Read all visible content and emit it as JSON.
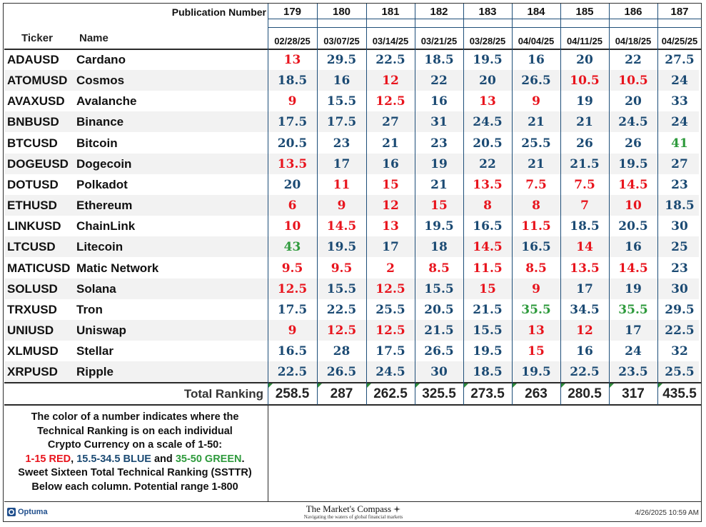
{
  "header": {
    "publication_label": "Publication Number",
    "publication_numbers": [
      "179",
      "180",
      "181",
      "182",
      "183",
      "184",
      "185",
      "186",
      "187"
    ],
    "ticker_label": "Ticker",
    "name_label": "Name",
    "dates": [
      "02/28/25",
      "03/07/25",
      "03/14/25",
      "03/21/25",
      "03/28/25",
      "04/04/25",
      "04/11/25",
      "04/18/25",
      "04/25/25"
    ]
  },
  "colors": {
    "red": "#e8141d",
    "blue": "#1b4a73",
    "green": "#2e9a3c",
    "divider": "#1e4e79",
    "stripe": "#f2f2f2"
  },
  "rows": [
    {
      "ticker": "ADAUSD",
      "name": "Cardano",
      "values": [
        "13",
        "29.5",
        "22.5",
        "18.5",
        "19.5",
        "16",
        "20",
        "22",
        "27.5"
      ]
    },
    {
      "ticker": "ATOMUSD",
      "name": "Cosmos",
      "values": [
        "18.5",
        "16",
        "12",
        "22",
        "20",
        "26.5",
        "10.5",
        "10.5",
        "24"
      ]
    },
    {
      "ticker": "AVAXUSD",
      "name": "Avalanche",
      "values": [
        "9",
        "15.5",
        "12.5",
        "16",
        "13",
        "9",
        "19",
        "20",
        "33"
      ]
    },
    {
      "ticker": "BNBUSD",
      "name": "Binance",
      "values": [
        "17.5",
        "17.5",
        "27",
        "31",
        "24.5",
        "21",
        "21",
        "24.5",
        "24"
      ]
    },
    {
      "ticker": "BTCUSD",
      "name": "Bitcoin",
      "values": [
        "20.5",
        "23",
        "21",
        "23",
        "20.5",
        "25.5",
        "26",
        "26",
        "41"
      ]
    },
    {
      "ticker": "DOGEUSD",
      "name": "Dogecoin",
      "values": [
        "13.5",
        "17",
        "16",
        "19",
        "22",
        "21",
        "21.5",
        "19.5",
        "27"
      ]
    },
    {
      "ticker": "DOTUSD",
      "name": "Polkadot",
      "values": [
        "20",
        "11",
        "15",
        "21",
        "13.5",
        "7.5",
        "7.5",
        "14.5",
        "23"
      ]
    },
    {
      "ticker": "ETHUSD",
      "name": "Ethereum",
      "values": [
        "6",
        "9",
        "12",
        "15",
        "8",
        "8",
        "7",
        "10",
        "18.5"
      ]
    },
    {
      "ticker": "LINKUSD",
      "name": "ChainLink",
      "values": [
        "10",
        "14.5",
        "13",
        "19.5",
        "16.5",
        "11.5",
        "18.5",
        "20.5",
        "30"
      ]
    },
    {
      "ticker": "LTCUSD",
      "name": "Litecoin",
      "values": [
        "43",
        "19.5",
        "17",
        "18",
        "14.5",
        "16.5",
        "14",
        "16",
        "25"
      ]
    },
    {
      "ticker": "MATICUSD",
      "name": "Matic Network",
      "values": [
        "9.5",
        "9.5",
        "2",
        "8.5",
        "11.5",
        "8.5",
        "13.5",
        "14.5",
        "23"
      ]
    },
    {
      "ticker": "SOLUSD",
      "name": "Solana",
      "values": [
        "12.5",
        "15.5",
        "12.5",
        "15.5",
        "15",
        "9",
        "17",
        "19",
        "30"
      ]
    },
    {
      "ticker": "TRXUSD",
      "name": "Tron",
      "values": [
        "17.5",
        "22.5",
        "25.5",
        "20.5",
        "21.5",
        "35.5",
        "34.5",
        "35.5",
        "29.5"
      ]
    },
    {
      "ticker": "UNIUSD",
      "name": "Uniswap",
      "values": [
        "9",
        "12.5",
        "12.5",
        "21.5",
        "15.5",
        "13",
        "12",
        "17",
        "22.5"
      ]
    },
    {
      "ticker": "XLMUSD",
      "name": "Stellar",
      "values": [
        "16.5",
        "28",
        "17.5",
        "26.5",
        "19.5",
        "15",
        "16",
        "24",
        "32"
      ]
    },
    {
      "ticker": "XRPUSD",
      "name": "Ripple",
      "values": [
        "22.5",
        "26.5",
        "24.5",
        "30",
        "18.5",
        "19.5",
        "22.5",
        "23.5",
        "25.5"
      ]
    }
  ],
  "totals": {
    "label": "Total Ranking",
    "values": [
      "258.5",
      "287",
      "262.5",
      "325.5",
      "273.5",
      "263",
      "280.5",
      "317",
      "435.5"
    ]
  },
  "legend": {
    "line1": "The color of a number indicates where the",
    "line2": "Technical Ranking is on each individual",
    "line3": "Crypto Currency on a scale of 1-50:",
    "red_text": "1-15 RED",
    "sep1": ", ",
    "blue_text": "15.5-34.5 BLUE",
    "sep2": " and ",
    "green_text": "35-50 GREEN",
    "end": ".",
    "line5": "Sweet Sixteen Total Technical Ranking (SSTTR)",
    "line6": "Below each column.   Potential range 1-800"
  },
  "footer": {
    "logo_text": "Optuma",
    "title": "The Market's Compass",
    "subtitle": "Navigating the waters of global financial markets",
    "timestamp": "4/26/2025 10:59 AM",
    "logo_icon": "optuma-logo-icon",
    "compass_icon": "compass-rose-icon"
  }
}
